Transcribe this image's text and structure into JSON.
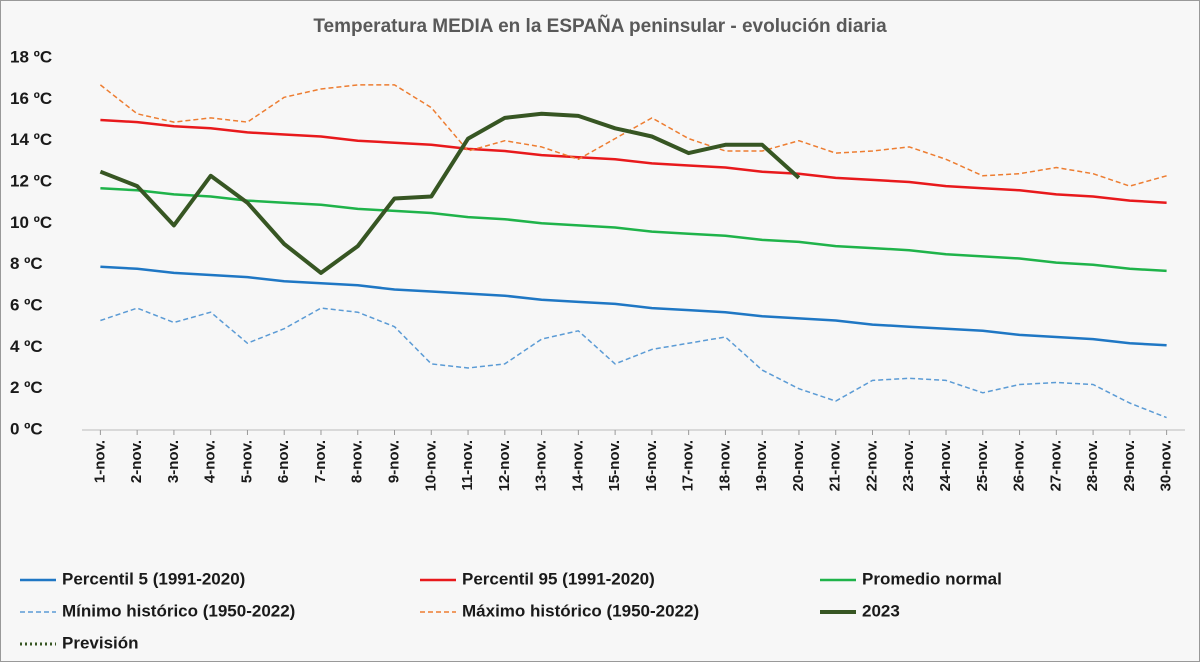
{
  "chart_data": {
    "type": "line",
    "title": "Temperatura MEDIA en la ESPAÑA peninsular - evolución diaria",
    "categories": [
      "1-nov.",
      "2-nov.",
      "3-nov.",
      "4-nov.",
      "5-nov.",
      "6-nov.",
      "7-nov.",
      "8-nov.",
      "9-nov.",
      "10-nov.",
      "11-nov.",
      "12-nov.",
      "13-nov.",
      "14-nov.",
      "15-nov.",
      "16-nov.",
      "17-nov.",
      "18-nov.",
      "19-nov.",
      "20-nov.",
      "21-nov.",
      "22-nov.",
      "23-nov.",
      "24-nov.",
      "25-nov.",
      "26-nov.",
      "27-nov.",
      "28-nov.",
      "29-nov.",
      "30-nov."
    ],
    "ylim": [
      0,
      18
    ],
    "yticks": [
      {
        "value": 0,
        "label": "0 ºC"
      },
      {
        "value": 2,
        "label": "2 ºC"
      },
      {
        "value": 4,
        "label": "4 ºC"
      },
      {
        "value": 6,
        "label": "6 ºC"
      },
      {
        "value": 8,
        "label": "8 ºC"
      },
      {
        "value": 10,
        "label": "10 ºC"
      },
      {
        "value": 12,
        "label": "12 ºC"
      },
      {
        "value": 14,
        "label": "14 ºC"
      },
      {
        "value": 16,
        "label": "16 ºC"
      },
      {
        "value": 18,
        "label": "18 ºC"
      }
    ],
    "series": [
      {
        "name": "Percentil 5 (1991-2020)",
        "color": "#1f77c4",
        "dash": "solid",
        "values": [
          7.9,
          7.8,
          7.6,
          7.5,
          7.4,
          7.2,
          7.1,
          7.0,
          6.8,
          6.7,
          6.6,
          6.5,
          6.3,
          6.2,
          6.1,
          5.9,
          5.8,
          5.7,
          5.5,
          5.4,
          5.3,
          5.1,
          5.0,
          4.9,
          4.8,
          4.6,
          4.5,
          4.4,
          4.2,
          4.1
        ]
      },
      {
        "name": "Percentil 95 (1991-2020)",
        "color": "#e8191c",
        "dash": "solid",
        "values": [
          15.0,
          14.9,
          14.7,
          14.6,
          14.4,
          14.3,
          14.2,
          14.0,
          13.9,
          13.8,
          13.6,
          13.5,
          13.3,
          13.2,
          13.1,
          12.9,
          12.8,
          12.7,
          12.5,
          12.4,
          12.2,
          12.1,
          12.0,
          11.8,
          11.7,
          11.6,
          11.4,
          11.3,
          11.1,
          11.0
        ]
      },
      {
        "name": "Promedio normal",
        "color": "#1fb34a",
        "dash": "solid",
        "values": [
          11.7,
          11.6,
          11.4,
          11.3,
          11.1,
          11.0,
          10.9,
          10.7,
          10.6,
          10.5,
          10.3,
          10.2,
          10.0,
          9.9,
          9.8,
          9.6,
          9.5,
          9.4,
          9.2,
          9.1,
          8.9,
          8.8,
          8.7,
          8.5,
          8.4,
          8.3,
          8.1,
          8.0,
          7.8,
          7.7
        ]
      },
      {
        "name": "Mínimo histórico (1950-2022)",
        "color": "#5b9bd5",
        "dash": "dashed",
        "values": [
          5.3,
          5.9,
          5.2,
          5.7,
          4.2,
          4.9,
          5.9,
          5.7,
          5.0,
          3.2,
          3.0,
          3.2,
          4.4,
          4.8,
          3.2,
          3.9,
          4.2,
          4.5,
          2.9,
          2.0,
          1.4,
          2.4,
          2.5,
          2.4,
          1.8,
          2.2,
          2.3,
          2.2,
          1.3,
          0.6
        ]
      },
      {
        "name": "Máximo histórico (1950-2022)",
        "color": "#ed7d31",
        "dash": "dashed",
        "values": [
          16.7,
          15.3,
          14.9,
          15.1,
          14.9,
          16.1,
          16.5,
          16.7,
          16.7,
          15.6,
          13.5,
          14.0,
          13.7,
          13.1,
          14.1,
          15.1,
          14.1,
          13.5,
          13.5,
          14.0,
          13.4,
          13.5,
          13.7,
          13.1,
          12.3,
          12.4,
          12.7,
          12.4,
          11.8,
          12.3
        ]
      },
      {
        "name": "2023",
        "color": "#375623",
        "dash": "thick",
        "values": [
          12.5,
          11.8,
          9.9,
          12.3,
          11.0,
          9.0,
          7.6,
          8.9,
          11.2,
          11.3,
          14.1,
          15.1,
          15.3,
          15.2,
          14.6,
          14.2,
          13.4,
          13.8,
          13.8,
          12.2,
          null,
          null,
          null,
          null,
          null,
          null,
          null,
          null,
          null,
          null
        ]
      },
      {
        "name": "Previsión",
        "color": "#375623",
        "dash": "dotted",
        "values": [
          null,
          null,
          null,
          null,
          null,
          null,
          null,
          null,
          null,
          null,
          null,
          null,
          null,
          null,
          null,
          null,
          null,
          null,
          null,
          null,
          null,
          null,
          null,
          null,
          null,
          null,
          null,
          null,
          null,
          null
        ]
      }
    ]
  }
}
